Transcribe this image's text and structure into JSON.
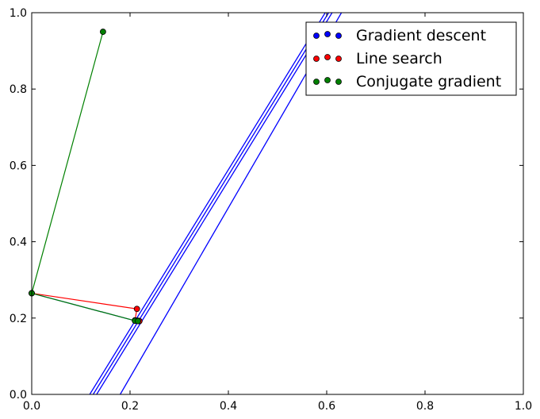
{
  "chart_data": {
    "type": "scatter",
    "title": "",
    "xlabel": "",
    "ylabel": "",
    "xlim": [
      0,
      1
    ],
    "ylim": [
      0,
      1
    ],
    "xticks": [
      "0.0",
      "0.2",
      "0.4",
      "0.6",
      "0.8",
      "1.0"
    ],
    "yticks": [
      "0.0",
      "0.2",
      "0.4",
      "0.6",
      "0.8",
      "1.0"
    ],
    "grid": false,
    "legend_position": "top-right",
    "contour_color": "#0000ff",
    "contour_lines": [
      [
        [
          0.118,
          0.0
        ],
        [
          0.597,
          1.0
        ]
      ],
      [
        [
          0.125,
          0.0
        ],
        [
          0.604,
          1.0
        ]
      ],
      [
        [
          0.132,
          0.0
        ],
        [
          0.611,
          1.0
        ]
      ],
      [
        [
          0.18,
          0.0
        ],
        [
          0.63,
          1.0
        ]
      ]
    ],
    "series": [
      {
        "name": "Gradient descent",
        "color": "#0000ff",
        "x": [
          0.0,
          0.21,
          0.215,
          0.218,
          0.219
        ],
        "y": [
          0.265,
          0.193,
          0.193,
          0.192,
          0.192
        ],
        "path_color": "#0000ff"
      },
      {
        "name": "Line search",
        "color": "#ff0000",
        "x": [
          0.0,
          0.214,
          0.21,
          0.216,
          0.219
        ],
        "y": [
          0.265,
          0.224,
          0.194,
          0.193,
          0.192
        ],
        "path_color": "#ff0000"
      },
      {
        "name": "Conjugate gradient",
        "color": "#008000",
        "x": [
          0.145,
          0.0,
          0.21,
          0.216
        ],
        "y": [
          0.95,
          0.265,
          0.193,
          0.192
        ],
        "path_color": "#008000"
      }
    ]
  }
}
